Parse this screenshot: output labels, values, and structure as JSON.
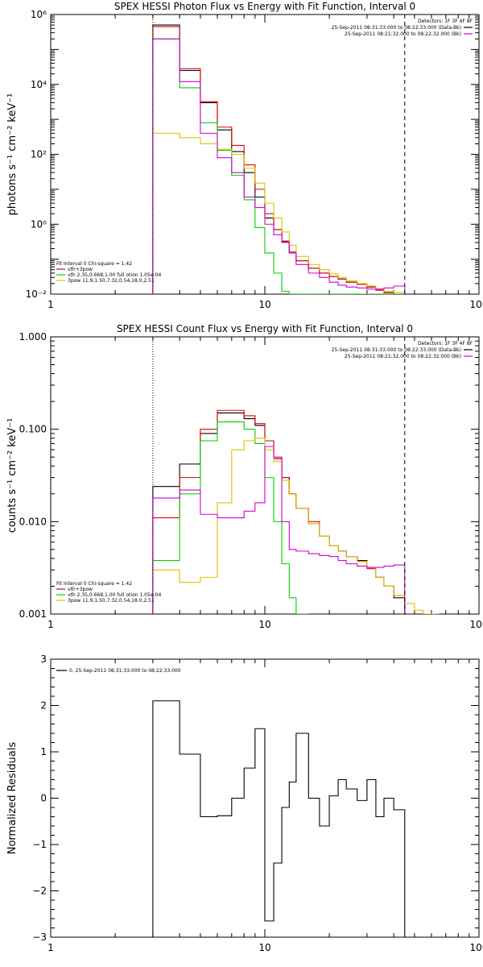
{
  "colors": {
    "background": "#ffffff",
    "axis": "#000000",
    "data_bkg": "#000000",
    "bkg": "#d000d0",
    "vth_3pow": "#e00000",
    "vth": "#00d000",
    "pow": "#e0c000"
  },
  "chart_data": [
    {
      "type": "line",
      "title": "SPEX HESSI Photon Flux vs Energy with Fit Function, Interval 0",
      "ylabel": "photons s⁻¹ cm⁻² keV⁻¹",
      "xlabel": "",
      "xscale": "log",
      "yscale": "log",
      "xlim": [
        1,
        100
      ],
      "ylim": [
        0.01,
        1000000
      ],
      "xticks": [
        1,
        10,
        100
      ],
      "xticklabels": [
        "1",
        "10",
        "100"
      ],
      "yticks": [
        0.01,
        1,
        100,
        10000,
        1000000
      ],
      "yticklabels": [
        "10⁻²",
        "10⁰",
        "10²",
        "10⁴",
        "10⁶"
      ],
      "x_edges": [
        3,
        4,
        5,
        6,
        7,
        8,
        9,
        10,
        11,
        12,
        13,
        14,
        16,
        18,
        20,
        22,
        24,
        27,
        30,
        33,
        36,
        40,
        45
      ],
      "vlines": [
        {
          "x": 3,
          "style": "dotted"
        },
        {
          "x": 45,
          "style": "dashed"
        }
      ],
      "legend_top": {
        "header": "Detectors: 1F 3F 4F 8F",
        "lines": [
          "25-Sep-2011 08:31:33.000 to 08:22:33.000 (Data-Bk)",
          "25-Sep-2011 08:21:32.000 to 08:22:32.000 (Bk)"
        ]
      },
      "legend_bottom": {
        "header": "Fit Interval 0   Chi-square = 1.42",
        "lines": [
          "vth+3pow",
          "vth 2.35,0.668,1.00  full otion 1.05e-04",
          "3pow 11.9,1.50,7.32,0.54,18.0,2.51"
        ]
      },
      "series": [
        {
          "name": "Data-Bk",
          "color": "#000000",
          "values": [
            500000,
            25000,
            3000,
            500,
            120,
            30,
            6,
            1.5,
            0.7,
            0.32,
            0.15,
            0.09,
            0.055,
            0.04,
            0.032,
            0.027,
            0.022,
            0.019,
            0.016,
            0.013,
            0.011,
            0.01
          ]
        },
        {
          "name": "vth+3pow",
          "color": "#e00000",
          "values": [
            450000,
            28000,
            3200,
            600,
            180,
            50,
            10,
            2,
            0.7,
            0.33,
            0.16,
            0.09,
            0.055,
            0.04,
            0.032,
            0.027,
            0.022,
            0.019,
            0.016,
            0.013,
            0.011,
            0.01
          ]
        },
        {
          "name": "vth",
          "color": "#00d000",
          "values": [
            200000,
            8000,
            800,
            130,
            25,
            5,
            0.8,
            0.15,
            0.04,
            0.012,
            0.005,
            0.005,
            0.005,
            0.005,
            0.005,
            0.005,
            0.005,
            0.005,
            0.005,
            0.005,
            0.005,
            0.005
          ]
        },
        {
          "name": "3pow",
          "color": "#e0c000",
          "values": [
            400,
            300,
            200,
            140,
            100,
            40,
            15,
            4,
            1.5,
            0.6,
            0.25,
            0.12,
            0.07,
            0.05,
            0.038,
            0.03,
            0.024,
            0.02,
            0.017,
            0.014,
            0.012,
            0.011
          ]
        },
        {
          "name": "Bk",
          "color": "#d000d0",
          "values": [
            200000,
            12000,
            400,
            80,
            30,
            6,
            3,
            1,
            0.5,
            0.3,
            0.15,
            0.07,
            0.04,
            0.03,
            0.022,
            0.018,
            0.016,
            0.015,
            0.014,
            0.014,
            0.015,
            0.017
          ]
        }
      ]
    },
    {
      "type": "line",
      "title": "SPEX HESSI Count Flux vs Energy with Fit Function, Interval 0",
      "ylabel": "counts s⁻¹ cm⁻² keV⁻¹",
      "xlabel": "",
      "xscale": "log",
      "yscale": "log",
      "xlim": [
        1,
        100
      ],
      "ylim": [
        0.001,
        1
      ],
      "xticks": [
        1,
        10,
        100
      ],
      "xticklabels": [
        "1",
        "10",
        "100"
      ],
      "yticks": [
        0.001,
        0.01,
        0.1,
        1
      ],
      "yticklabels": [
        "0.001",
        "0.010",
        "0.100",
        "1.000"
      ],
      "x_edges": [
        3,
        4,
        5,
        6,
        7,
        8,
        9,
        10,
        11,
        12,
        13,
        14,
        16,
        18,
        20,
        22,
        24,
        27,
        30,
        33,
        36,
        40,
        45,
        50,
        55,
        60,
        65
      ],
      "vlines": [
        {
          "x": 3,
          "style": "dotted"
        },
        {
          "x": 45,
          "style": "dashed"
        }
      ],
      "legend_top": {
        "header": "Detectors: 1F 3F 4F 8F",
        "lines": [
          "25-Sep-2011 08:31:33.000 to 08:22:33.000 (Data-Bk)",
          "25-Sep-2011 08:21:32.000 to 08:22:32.000 (Bk)"
        ]
      },
      "legend_bottom": {
        "header": "Fit Interval 0   Chi-square = 1.42",
        "lines": [
          "vth+3pow",
          "vth 2.35,0.668,1.00  full otion 1.05e-04",
          "3pow 11.9,1.50,7.32,0.54,18.0,2.51"
        ]
      },
      "series": [
        {
          "name": "Data-Bk",
          "color": "#000000",
          "values": [
            0.024,
            0.042,
            0.09,
            0.15,
            0.15,
            0.13,
            0.11,
            0.075,
            0.048,
            0.03,
            0.02,
            0.014,
            0.0095,
            0.007,
            0.0055,
            0.0048,
            0.0042,
            0.0038,
            0.0032,
            0.0025,
            0.002,
            0.0015,
            null,
            null,
            null,
            null
          ]
        },
        {
          "name": "vth+3pow",
          "color": "#e00000",
          "values": [
            0.011,
            0.03,
            0.1,
            0.16,
            0.16,
            0.14,
            0.115,
            0.075,
            0.048,
            0.03,
            0.02,
            0.014,
            0.01,
            0.007,
            0.0055,
            0.0048,
            0.0042,
            0.0037,
            0.0031,
            0.0025,
            0.002,
            0.0016,
            null,
            null,
            null,
            null
          ]
        },
        {
          "name": "vth",
          "color": "#00d000",
          "values": [
            0.0038,
            0.02,
            0.075,
            0.12,
            0.12,
            0.1,
            0.07,
            0.03,
            0.01,
            0.0035,
            0.0015,
            0.0009,
            null,
            null,
            null,
            null,
            null,
            null,
            null,
            null,
            null,
            null,
            null,
            null,
            null,
            null
          ]
        },
        {
          "name": "3pow",
          "color": "#e0c000",
          "values": [
            0.003,
            0.0022,
            0.0025,
            0.016,
            0.06,
            0.075,
            0.08,
            0.06,
            0.045,
            0.028,
            0.02,
            0.014,
            0.0095,
            0.007,
            0.0055,
            0.0048,
            0.0042,
            0.0037,
            0.0032,
            0.0025,
            0.002,
            0.0016,
            0.0013,
            0.0011,
            0.001,
            0.0009
          ]
        },
        {
          "name": "Bk",
          "color": "#d000d0",
          "values": [
            0.018,
            0.022,
            0.012,
            0.011,
            0.011,
            0.013,
            0.016,
            0.065,
            0.05,
            0.01,
            0.005,
            0.0048,
            0.0045,
            0.0043,
            0.0042,
            0.0038,
            0.0035,
            0.0033,
            0.0032,
            0.0032,
            0.0033,
            0.0034,
            null,
            null,
            null,
            null
          ]
        }
      ]
    },
    {
      "type": "line",
      "title": "",
      "ylabel": "Normalized Residuals",
      "xlabel": "",
      "xscale": "log",
      "yscale": "linear",
      "xlim": [
        1,
        100
      ],
      "ylim": [
        -3,
        3
      ],
      "xticks": [
        1,
        10,
        100
      ],
      "xticklabels": [
        "1",
        "10",
        "100"
      ],
      "yticks": [
        -3,
        -2,
        -1,
        0,
        1,
        2,
        3
      ],
      "yticklabels": [
        "−3",
        "−2",
        "−1",
        "0",
        "1",
        "2",
        "3"
      ],
      "x_edges": [
        3,
        4,
        5,
        6,
        7,
        8,
        9,
        10,
        11,
        12,
        13,
        14,
        16,
        18,
        20,
        22,
        24,
        27,
        30,
        33,
        36,
        40,
        45
      ],
      "legend_top": {
        "header": "",
        "lines": [
          "0. 25-Sep-2011 08:31:33.000 to 08:22:33.000"
        ]
      },
      "series": [
        {
          "name": "residuals",
          "color": "#000000",
          "values": [
            2.1,
            0.95,
            -0.4,
            -0.38,
            0.0,
            0.65,
            1.5,
            -2.65,
            -1.4,
            -0.2,
            0.35,
            1.4,
            0.0,
            -0.6,
            0.05,
            0.4,
            0.2,
            -0.05,
            0.4,
            -0.4,
            0.0,
            -0.25
          ]
        }
      ]
    }
  ]
}
